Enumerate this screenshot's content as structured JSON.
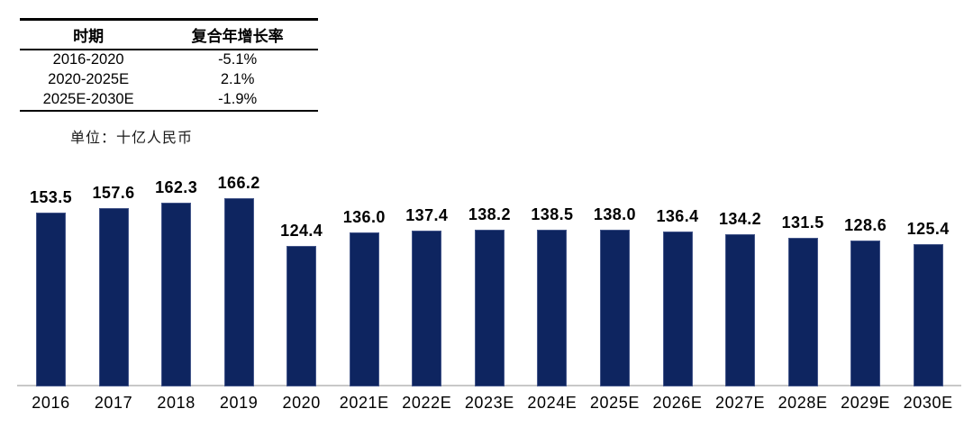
{
  "table": {
    "headers": [
      "时期",
      "复合年增长率"
    ],
    "rows": [
      [
        "2016-2020",
        "-5.1%"
      ],
      [
        "2020-2025E",
        "2.1%"
      ],
      [
        "2025E-2030E",
        "-1.9%"
      ]
    ]
  },
  "chart_data": {
    "type": "bar",
    "unit_label": "单位：十亿人民币",
    "categories": [
      "2016",
      "2017",
      "2018",
      "2019",
      "2020",
      "2021E",
      "2022E",
      "2023E",
      "2024E",
      "2025E",
      "2026E",
      "2027E",
      "2028E",
      "2029E",
      "2030E"
    ],
    "values": [
      153.5,
      157.6,
      162.3,
      166.2,
      124.4,
      136.0,
      137.4,
      138.2,
      138.5,
      138.0,
      136.4,
      134.2,
      131.5,
      128.6,
      125.4
    ],
    "title": "",
    "xlabel": "",
    "ylabel": "十亿人民币",
    "ylim": [
      0,
      175
    ],
    "grid": false,
    "legend": false,
    "data_labels": true,
    "value_decimals": 1
  },
  "colors": {
    "bar": "#0e2560",
    "bar_edge": "#44568a",
    "axis_line": "#c8c8c8",
    "text": "#000000"
  }
}
